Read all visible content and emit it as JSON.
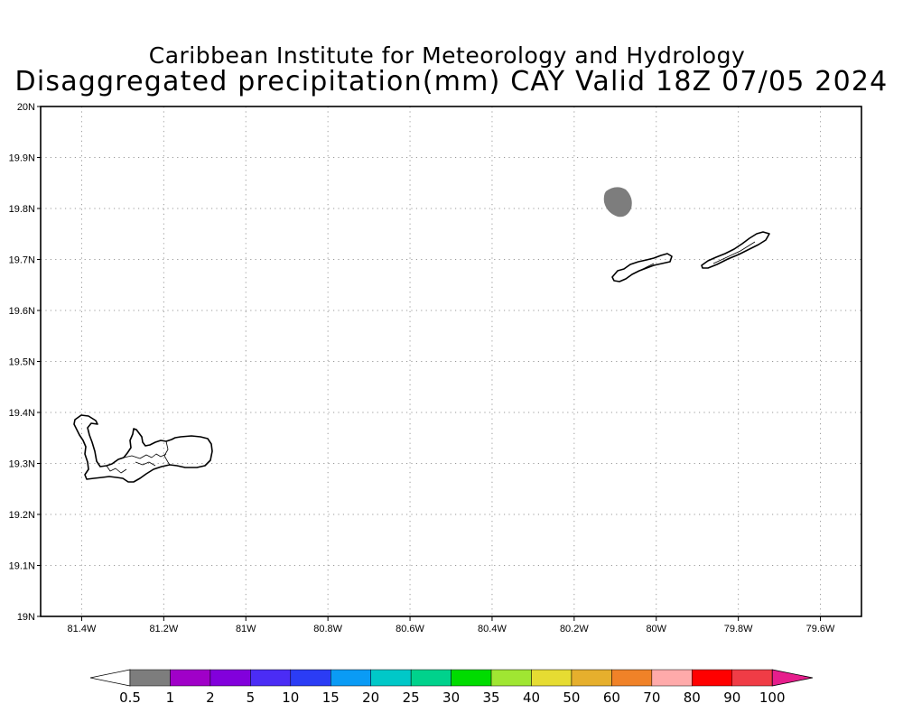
{
  "title": {
    "line1": "Caribbean Institute for Meteorology and Hydrology",
    "line2": "Disaggregated precipitation(mm) CAY Valid 18Z 07/05 2024"
  },
  "map": {
    "lon_range": [
      -81.5,
      -79.5
    ],
    "lat_range": [
      19.0,
      20.0
    ],
    "grid": "dotted",
    "lon_ticks": [
      {
        "v": -81.4,
        "label": "81.4W"
      },
      {
        "v": -81.2,
        "label": "81.2W"
      },
      {
        "v": -81.0,
        "label": "81W"
      },
      {
        "v": -80.8,
        "label": "80.8W"
      },
      {
        "v": -80.6,
        "label": "80.6W"
      },
      {
        "v": -80.4,
        "label": "80.4W"
      },
      {
        "v": -80.2,
        "label": "80.2W"
      },
      {
        "v": -80.0,
        "label": "80W"
      },
      {
        "v": -79.8,
        "label": "79.8W"
      },
      {
        "v": -79.6,
        "label": "79.6W"
      }
    ],
    "lat_ticks": [
      {
        "v": 20.0,
        "label": "20N"
      },
      {
        "v": 19.9,
        "label": "19.9N"
      },
      {
        "v": 19.8,
        "label": "19.8N"
      },
      {
        "v": 19.7,
        "label": "19.7N"
      },
      {
        "v": 19.6,
        "label": "19.6N"
      },
      {
        "v": 19.5,
        "label": "19.5N"
      },
      {
        "v": 19.4,
        "label": "19.4N"
      },
      {
        "v": 19.3,
        "label": "19.3N"
      },
      {
        "v": 19.2,
        "label": "19.2N"
      },
      {
        "v": 19.1,
        "label": "19.1N"
      },
      {
        "v": 19.0,
        "label": "19N"
      }
    ],
    "precip_blob": {
      "lon": -80.09,
      "lat": 19.82,
      "value_bin": "0.5-1",
      "color": "#7d7d7d"
    }
  },
  "colorbar": {
    "labels": [
      "0.5",
      "1",
      "2",
      "5",
      "10",
      "15",
      "20",
      "25",
      "30",
      "35",
      "40",
      "50",
      "60",
      "70",
      "80",
      "90",
      "100"
    ],
    "colors": [
      "#ffffff",
      "#7d7d7d",
      "#a000c8",
      "#8200dc",
      "#4b2cf5",
      "#2b3cf5",
      "#0a9bf5",
      "#00c8c8",
      "#00d28c",
      "#00dc00",
      "#a0e632",
      "#e6dc32",
      "#e6af2d",
      "#f08228",
      "#ffaaaa",
      "#ff0000",
      "#f03c46",
      "#e61e8c"
    ]
  }
}
